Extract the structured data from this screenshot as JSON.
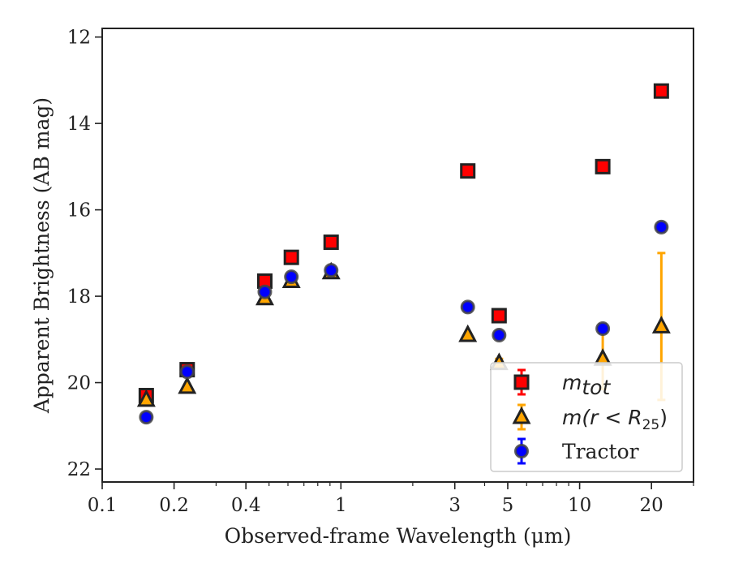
{
  "chart_data": {
    "type": "scatter",
    "xlabel": "Observed-frame Wavelength (μm)",
    "ylabel": "Apparent Brightness (AB mag)",
    "x_scale": "log",
    "xlim": [
      0.1,
      30
    ],
    "ylim": [
      22.3,
      11.8
    ],
    "y_inverted": true,
    "x_ticks": [
      0.1,
      0.2,
      0.4,
      1,
      3,
      5,
      10,
      20
    ],
    "x_tick_labels": [
      "0.1",
      "0.2",
      "0.4",
      "1",
      "3",
      "5",
      "10",
      "20"
    ],
    "y_ticks": [
      12,
      14,
      16,
      18,
      20,
      22
    ],
    "y_tick_labels": [
      "12",
      "14",
      "16",
      "18",
      "20",
      "22"
    ],
    "grid": false,
    "legend_position": "lower-right",
    "series": [
      {
        "name": "m_tot",
        "legend_label": {
          "main": "m",
          "sub": "tot"
        },
        "marker": "square",
        "color": "#ff0000",
        "edge_color": "#222222",
        "x": [
          0.153,
          0.227,
          0.48,
          0.62,
          0.91,
          3.4,
          4.6,
          12.5,
          22.0
        ],
        "y": [
          20.3,
          19.7,
          17.65,
          17.1,
          16.75,
          15.1,
          18.45,
          15.0,
          13.25
        ],
        "yerr": [
          0.05,
          0.05,
          0.03,
          0.03,
          0.03,
          0.03,
          0.05,
          0.05,
          0.05
        ]
      },
      {
        "name": "m(r < R25)",
        "legend_label": {
          "main": "m(r < R",
          "sub": "25",
          "tail": ")"
        },
        "marker": "triangle",
        "color": "#ffa500",
        "edge_color": "#222222",
        "x": [
          0.153,
          0.227,
          0.48,
          0.62,
          0.91,
          3.4,
          4.6,
          12.5,
          22.0
        ],
        "y": [
          20.4,
          20.1,
          18.05,
          17.65,
          17.45,
          18.9,
          19.55,
          19.45,
          18.7
        ],
        "yerr": [
          0.05,
          0.05,
          0.03,
          0.03,
          0.03,
          0.05,
          0.1,
          0.7,
          1.7
        ]
      },
      {
        "name": "Tractor",
        "marker": "circle",
        "color": "#0000ff",
        "edge_color": "#444444",
        "x": [
          0.153,
          0.227,
          0.48,
          0.62,
          0.91,
          3.4,
          4.6,
          12.5,
          22.0
        ],
        "y": [
          20.8,
          19.75,
          17.9,
          17.55,
          17.4,
          18.25,
          18.9,
          18.75,
          16.4
        ],
        "yerr": [
          0.05,
          0.05,
          0.03,
          0.03,
          0.03,
          0.05,
          0.05,
          0.1,
          0.1
        ]
      }
    ]
  }
}
